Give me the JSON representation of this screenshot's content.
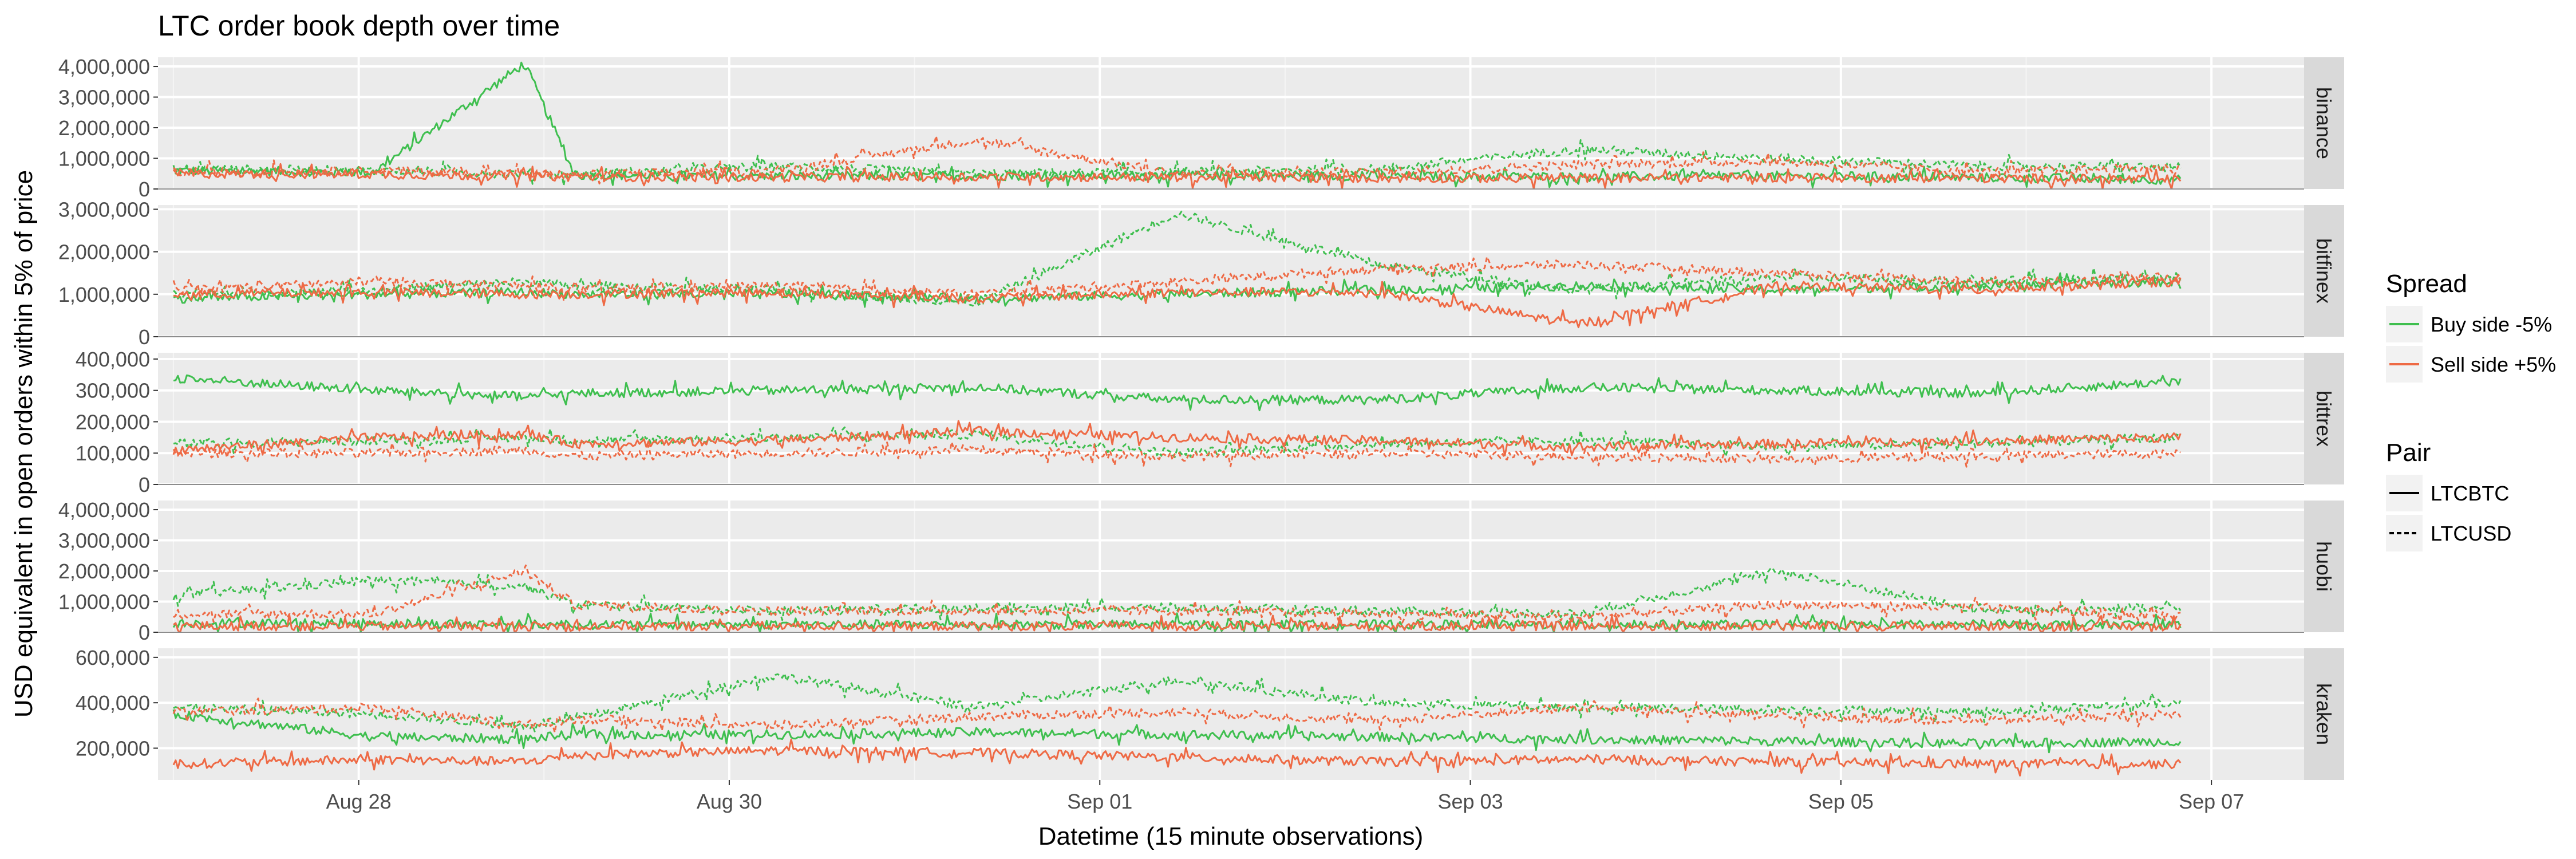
{
  "chart_data": {
    "type": "line",
    "title": "LTC  order book depth over time",
    "xlabel": "Datetime (15 minute observations)",
    "ylabel": "USD equivalent in open orders within 5% of price",
    "x_ticks": [
      "Aug 28",
      "Aug 30",
      "Sep 01",
      "Sep 03",
      "Sep 05",
      "Sep 07"
    ],
    "x_range": [
      "2018-08-26T22:00",
      "2018-09-07T12:00"
    ],
    "grid": true,
    "legend_position": "right",
    "legends": [
      {
        "title": "Spread",
        "entries": [
          {
            "label": "Buy side -5%",
            "color": "#3fbf4f"
          },
          {
            "label": "Sell side +5%",
            "color": "#ee6a45"
          }
        ]
      },
      {
        "title": "Pair",
        "entries": [
          {
            "label": "LTCBTC",
            "linetype": "solid"
          },
          {
            "label": "LTCUSD",
            "linetype": "dashed"
          }
        ]
      }
    ],
    "x_day_index": [
      0,
      1,
      1.75,
      2,
      3,
      4,
      5,
      6,
      7,
      8,
      9,
      10
    ],
    "facets": [
      {
        "name": "binance",
        "ylim": [
          0,
          4300000
        ],
        "yticks": [
          0,
          1000000,
          2000000,
          3000000,
          4000000
        ],
        "ytick_labels": [
          "0",
          "1,000,000",
          "2,000,000",
          "3,000,000",
          "4,000,000"
        ],
        "series": [
          {
            "spread": "Buy side -5%",
            "pair": "LTCBTC",
            "values": [
              600000,
              550000,
              4100000,
              450000,
              420000,
              430000,
              440000,
              420000,
              400000,
              430000,
              380000,
              300000
            ]
          },
          {
            "spread": "Buy side -5%",
            "pair": "LTCUSD",
            "values": [
              650000,
              600000,
              500000,
              480000,
              750000,
              500000,
              550000,
              650000,
              1300000,
              1000000,
              750000,
              700000
            ]
          },
          {
            "spread": "Sell side +5%",
            "pair": "LTCBTC",
            "values": [
              500000,
              480000,
              420000,
              400000,
              380000,
              400000,
              380000,
              360000,
              350000,
              380000,
              350000,
              300000
            ]
          },
          {
            "spread": "Sell side +5%",
            "pair": "LTCUSD",
            "values": [
              550000,
              600000,
              500000,
              450000,
              600000,
              1600000,
              500000,
              550000,
              800000,
              900000,
              550000,
              700000
            ]
          }
        ]
      },
      {
        "name": "bitfinex",
        "ylim": [
          0,
          3100000
        ],
        "yticks": [
          0,
          1000000,
          2000000,
          3000000
        ],
        "ytick_labels": [
          "0",
          "1,000,000",
          "2,000,000",
          "3,000,000"
        ],
        "series": [
          {
            "spread": "Buy side -5%",
            "pair": "LTCBTC",
            "values": [
              900000,
              1000000,
              1050000,
              1000000,
              1000000,
              900000,
              1000000,
              1100000,
              1200000,
              1100000,
              1200000,
              1300000
            ]
          },
          {
            "spread": "Buy side -5%",
            "pair": "LTCUSD",
            "values": [
              1000000,
              1100000,
              1300000,
              1200000,
              1100000,
              800000,
              2900000,
              1700000,
              1100000,
              1400000,
              1300000,
              1400000
            ]
          },
          {
            "spread": "Sell side +5%",
            "pair": "LTCBTC",
            "values": [
              1000000,
              1050000,
              1000000,
              1000000,
              1050000,
              900000,
              1050000,
              1050000,
              300000,
              1200000,
              1100000,
              1300000
            ]
          },
          {
            "spread": "Sell side +5%",
            "pair": "LTCUSD",
            "values": [
              1100000,
              1300000,
              1200000,
              1100000,
              1200000,
              1000000,
              1300000,
              1600000,
              1700000,
              1500000,
              1300000,
              1400000
            ]
          }
        ]
      },
      {
        "name": "bittrex",
        "ylim": [
          0,
          420000
        ],
        "yticks": [
          0,
          100000,
          200000,
          300000,
          400000
        ],
        "ytick_labels": [
          "0",
          "100,000",
          "200,000",
          "300,000",
          "400,000"
        ],
        "series": [
          {
            "spread": "Buy side -5%",
            "pair": "LTCBTC",
            "values": [
              340000,
              300000,
              280000,
              290000,
              300000,
              310000,
              270000,
              270000,
              310000,
              300000,
              290000,
              330000
            ]
          },
          {
            "spread": "Buy side -5%",
            "pair": "LTCUSD",
            "values": [
              130000,
              140000,
              150000,
              140000,
              150000,
              160000,
              100000,
              130000,
              140000,
              120000,
              130000,
              150000
            ]
          },
          {
            "spread": "Sell side +5%",
            "pair": "LTCBTC",
            "values": [
              110000,
              150000,
              160000,
              130000,
              140000,
              170000,
              150000,
              140000,
              120000,
              130000,
              140000,
              150000
            ]
          },
          {
            "spread": "Sell side +5%",
            "pair": "LTCUSD",
            "values": [
              100000,
              100000,
              110000,
              90000,
              100000,
              110000,
              90000,
              100000,
              90000,
              80000,
              90000,
              100000
            ]
          }
        ]
      },
      {
        "name": "huobi",
        "ylim": [
          0,
          4300000
        ],
        "yticks": [
          0,
          1000000,
          2000000,
          3000000,
          4000000
        ],
        "ytick_labels": [
          "0",
          "1,000,000",
          "2,000,000",
          "3,000,000",
          "4,000,000"
        ],
        "series": [
          {
            "spread": "Buy side -5%",
            "pair": "LTCBTC",
            "values": [
              300000,
              300000,
              250000,
              250000,
              250000,
              250000,
              250000,
              250000,
              250000,
              250000,
              250000,
              250000
            ]
          },
          {
            "spread": "Buy side -5%",
            "pair": "LTCUSD",
            "values": [
              1200000,
              1700000,
              1500000,
              900000,
              700000,
              800000,
              800000,
              700000,
              600000,
              2000000,
              700000,
              800000
            ]
          },
          {
            "spread": "Sell side +5%",
            "pair": "LTCBTC",
            "values": [
              200000,
              200000,
              200000,
              200000,
              200000,
              200000,
              200000,
              200000,
              200000,
              200000,
              200000,
              200000
            ]
          },
          {
            "spread": "Sell side +5%",
            "pair": "LTCUSD",
            "values": [
              600000,
              600000,
              2000000,
              900000,
              700000,
              700000,
              700000,
              600000,
              500000,
              900000,
              800000,
              500000
            ]
          }
        ]
      },
      {
        "name": "kraken",
        "ylim": [
          60000,
          640000
        ],
        "yticks": [
          200000,
          400000,
          600000
        ],
        "ytick_labels": [
          "200,000",
          "400,000",
          "600,000"
        ],
        "series": [
          {
            "spread": "Buy side -5%",
            "pair": "LTCBTC",
            "values": [
              350000,
              250000,
              240000,
              260000,
              260000,
              270000,
              260000,
              250000,
              240000,
              230000,
              220000,
              230000
            ]
          },
          {
            "spread": "Buy side -5%",
            "pair": "LTCUSD",
            "values": [
              380000,
              350000,
              300000,
              330000,
              520000,
              380000,
              500000,
              400000,
              380000,
              370000,
              360000,
              400000
            ]
          },
          {
            "spread": "Sell side +5%",
            "pair": "LTCBTC",
            "values": [
              130000,
              150000,
              140000,
              170000,
              190000,
              180000,
              160000,
              140000,
              150000,
              140000,
              130000,
              130000
            ]
          },
          {
            "spread": "Sell side +5%",
            "pair": "LTCUSD",
            "values": [
              360000,
              380000,
              300000,
              330000,
              300000,
              340000,
              360000,
              320000,
              380000,
              340000,
              320000,
              350000
            ]
          }
        ]
      }
    ]
  }
}
